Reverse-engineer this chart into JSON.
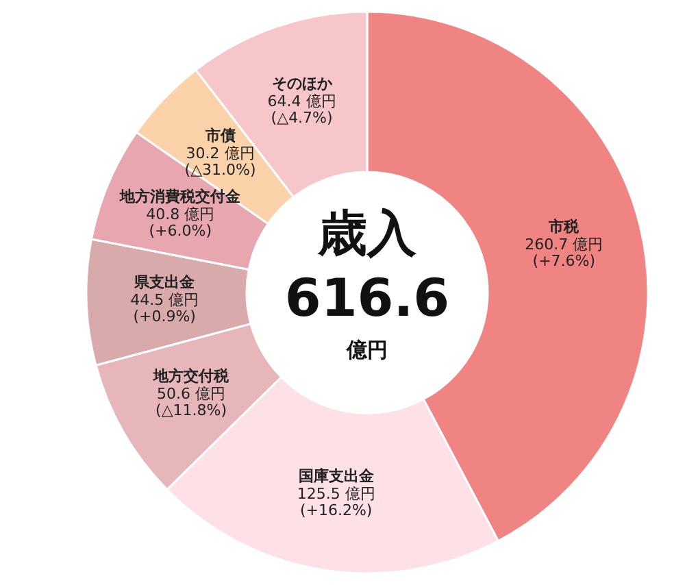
{
  "chart_data": {
    "type": "donut",
    "title": "歳入",
    "subtitle": "616.6",
    "annotations": [
      "億円"
    ],
    "categories": [
      "市税",
      "国庫支出金",
      "地方交付税",
      "県支出金",
      "地方消費税交付金",
      "市債",
      "そのほか"
    ],
    "values": [
      260.7,
      125.5,
      50.6,
      44.5,
      40.8,
      30.2,
      64.4
    ],
    "value_labels": [
      "260.7 億円\n(+7.6%)",
      "125.5 億円\n(+16.2%)",
      "50.6 億円\n(△11.8%)",
      "44.5 億円\n(+0.9%)",
      "40.8 億円\n(+6.0%)",
      "30.2 億円\n(△31.0%)",
      "64.4 億円\n(△4.7%)"
    ],
    "colors": [
      "#f08482",
      "#fde1e6",
      "#e6b6ba",
      "#d9aaab",
      "#e8a7b0",
      "#fbd2aa",
      "#f6c6ca"
    ]
  }
}
